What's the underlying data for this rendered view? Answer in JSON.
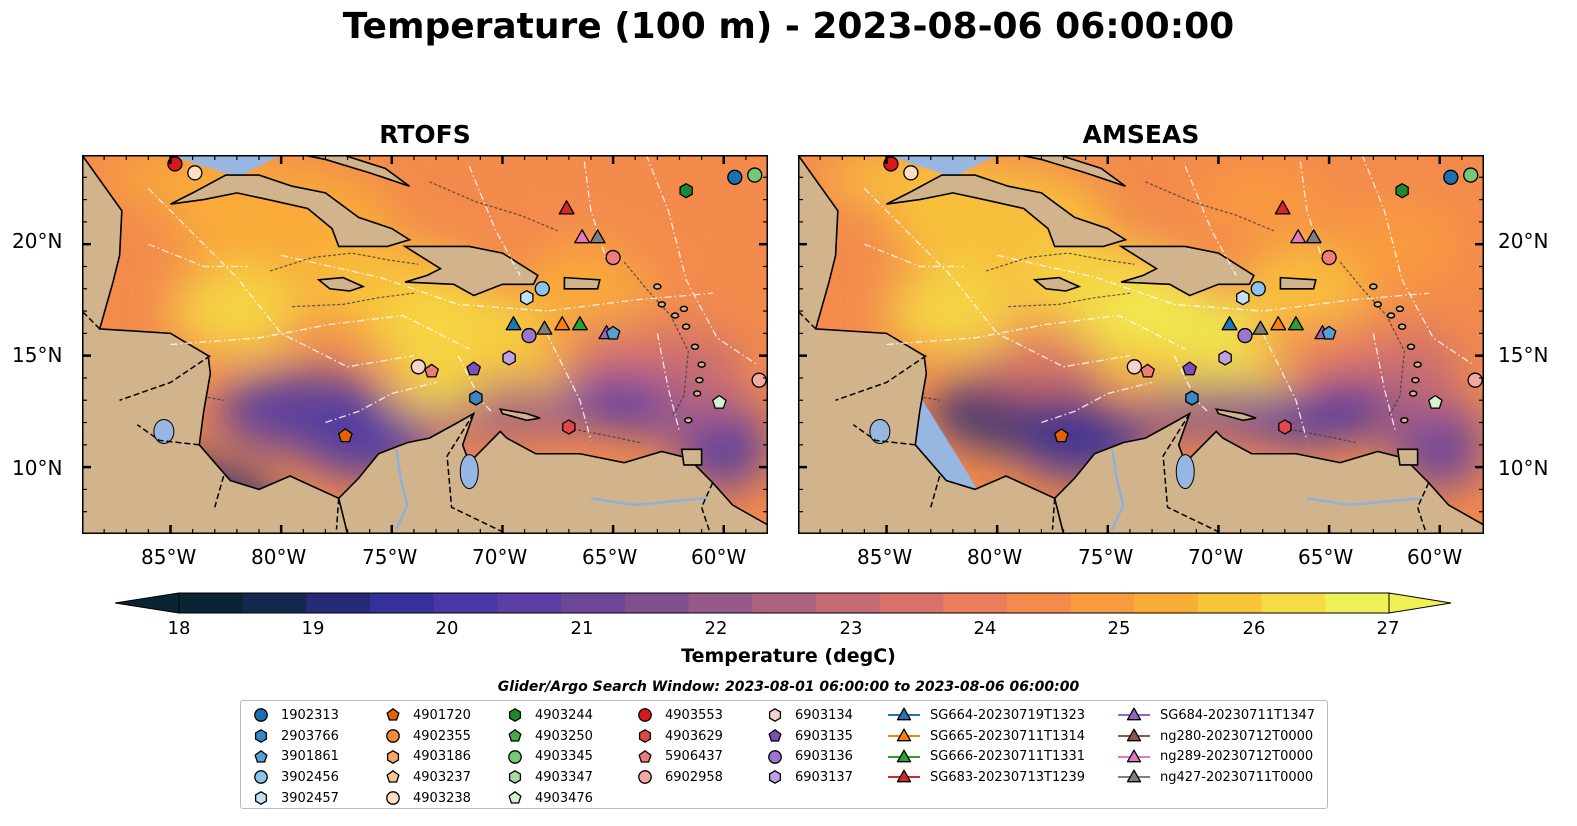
{
  "title": "Temperature (100 m) - 2023-08-06 06:00:00",
  "panels": [
    {
      "id": "rtofs",
      "title": "RTOFS"
    },
    {
      "id": "amseas",
      "title": "AMSEAS"
    }
  ],
  "lat_labels": [
    "20°N",
    "15°N",
    "10°N"
  ],
  "lon_labels": [
    "85°W",
    "80°W",
    "75°W",
    "70°W",
    "65°W",
    "60°W"
  ],
  "colorbar": {
    "label": "Temperature (degC)",
    "min": 18,
    "max": 27,
    "ticks": [
      "18",
      "19",
      "20",
      "21",
      "22",
      "23",
      "24",
      "25",
      "26",
      "27"
    ],
    "colors": [
      "#0b2433",
      "#16284d",
      "#262b78",
      "#36309a",
      "#4a37a6",
      "#5d3ea4",
      "#6d4797",
      "#7f4f8e",
      "#965a88",
      "#ad6280",
      "#c46b76",
      "#d9736a",
      "#e97d5c",
      "#f38b4d",
      "#f89b3f",
      "#f9ae37",
      "#f8c43a",
      "#f5dc44",
      "#eef155"
    ]
  },
  "map": {
    "extent": {
      "lon": [
        -89,
        -58
      ],
      "lat": [
        7,
        24
      ]
    },
    "land_color": "#d2b48c",
    "water_color": "#97b6e1"
  },
  "legend": {
    "title": "Glider/Argo Search Window: 2023-08-01 06:00:00 to 2023-08-06 06:00:00",
    "columns": [
      [
        {
          "label": "1902313",
          "marker": "circle",
          "color": "#1f6eb0"
        },
        {
          "label": "2903766",
          "marker": "hexagon",
          "color": "#3a86c0"
        },
        {
          "label": "3901861",
          "marker": "pentagon",
          "color": "#5a9fd2"
        },
        {
          "label": "3902456",
          "marker": "circle",
          "color": "#8cc3ea"
        },
        {
          "label": "3902457",
          "marker": "hexagon",
          "color": "#c4e0f6"
        }
      ],
      [
        {
          "label": "4901720",
          "marker": "pentagon",
          "color": "#e66100"
        },
        {
          "label": "4902355",
          "marker": "circle",
          "color": "#f58b3a"
        },
        {
          "label": "4903186",
          "marker": "hexagon",
          "color": "#fba765"
        },
        {
          "label": "4903237",
          "marker": "pentagon",
          "color": "#fdc591"
        },
        {
          "label": "4903238",
          "marker": "circle",
          "color": "#fde0c2"
        }
      ],
      [
        {
          "label": "4903244",
          "marker": "hexagon",
          "color": "#1b8a2f"
        },
        {
          "label": "4903250",
          "marker": "pentagon",
          "color": "#3fae4c"
        },
        {
          "label": "4903345",
          "marker": "circle",
          "color": "#74c977"
        },
        {
          "label": "4903347",
          "marker": "hexagon",
          "color": "#a5dda1"
        },
        {
          "label": "4903476",
          "marker": "pentagon",
          "color": "#d6f1d0"
        }
      ],
      [
        {
          "label": "4903553",
          "marker": "circle",
          "color": "#d7191c"
        },
        {
          "label": "4903629",
          "marker": "hexagon",
          "color": "#e0484a"
        },
        {
          "label": "5906437",
          "marker": "pentagon",
          "color": "#ef7b7b"
        },
        {
          "label": "6902958",
          "marker": "circle",
          "color": "#f6a9a3"
        }
      ],
      [
        {
          "label": "6903134",
          "marker": "hexagon",
          "color": "#f9d2cc"
        },
        {
          "label": "6903135",
          "marker": "pentagon",
          "color": "#7b4fb8"
        },
        {
          "label": "6903136",
          "marker": "circle",
          "color": "#9c75cf"
        },
        {
          "label": "6903137",
          "marker": "hexagon",
          "color": "#bfa0e0"
        }
      ],
      [
        {
          "label": "SG664-20230719T1323",
          "marker": "triangle",
          "color": "#1f77b4"
        },
        {
          "label": "SG665-20230711T1314",
          "marker": "triangle",
          "color": "#ff7f0e"
        },
        {
          "label": "SG666-20230711T1331",
          "marker": "triangle",
          "color": "#2ca02c"
        },
        {
          "label": "SG683-20230713T1239",
          "marker": "triangle",
          "color": "#d62728"
        }
      ],
      [
        {
          "label": "SG684-20230711T1347",
          "marker": "triangle",
          "color": "#9467bd"
        },
        {
          "label": "ng280-20230712T0000",
          "marker": "triangle",
          "color": "#8c564b"
        },
        {
          "label": "ng289-20230712T0000",
          "marker": "triangle",
          "color": "#e377c2"
        },
        {
          "label": "ng427-20230711T0000",
          "marker": "triangle",
          "color": "#7f7f7f"
        }
      ]
    ]
  },
  "platforms": [
    {
      "marker": "circle",
      "color": "#d7191c",
      "lon": -84.8,
      "lat": 23.6
    },
    {
      "marker": "circle",
      "color": "#fde0c2",
      "lon": -83.9,
      "lat": 23.2
    },
    {
      "marker": "circle",
      "color": "#1f6eb0",
      "lon": -59.5,
      "lat": 23.0
    },
    {
      "marker": "circle",
      "color": "#74c977",
      "lon": -58.6,
      "lat": 23.1
    },
    {
      "marker": "hexagon",
      "color": "#1b8a2f",
      "lon": -61.7,
      "lat": 22.4
    },
    {
      "marker": "triangle",
      "color": "#d62728",
      "lon": -67.1,
      "lat": 21.6
    },
    {
      "marker": "triangle",
      "color": "#e377c2",
      "lon": -66.4,
      "lat": 20.3
    },
    {
      "marker": "triangle",
      "color": "#7f7f7f",
      "lon": -65.7,
      "lat": 20.3
    },
    {
      "marker": "circle",
      "color": "#ef7b7b",
      "lon": -65.0,
      "lat": 19.4
    },
    {
      "marker": "circle",
      "color": "#8cc3ea",
      "lon": -68.2,
      "lat": 18.0
    },
    {
      "marker": "hexagon",
      "color": "#c4e0f6",
      "lon": -68.9,
      "lat": 17.6
    },
    {
      "marker": "triangle",
      "color": "#1f77b4",
      "lon": -69.5,
      "lat": 16.4
    },
    {
      "marker": "circle",
      "color": "#9c75cf",
      "lon": -68.8,
      "lat": 15.9
    },
    {
      "marker": "triangle",
      "color": "#7f7f7f",
      "lon": -68.1,
      "lat": 16.2
    },
    {
      "marker": "triangle",
      "color": "#ff7f0e",
      "lon": -67.3,
      "lat": 16.4
    },
    {
      "marker": "triangle",
      "color": "#2ca02c",
      "lon": -66.5,
      "lat": 16.4
    },
    {
      "marker": "triangle",
      "color": "#9467bd",
      "lon": -65.3,
      "lat": 16.0
    },
    {
      "marker": "pentagon",
      "color": "#5a9fd2",
      "lon": -65.0,
      "lat": 16.0
    },
    {
      "marker": "hexagon",
      "color": "#bfa0e0",
      "lon": -69.7,
      "lat": 14.9
    },
    {
      "marker": "circle",
      "color": "#f9d2cc",
      "lon": -73.8,
      "lat": 14.5
    },
    {
      "marker": "pentagon",
      "color": "#ef7b7b",
      "lon": -73.2,
      "lat": 14.3
    },
    {
      "marker": "pentagon",
      "color": "#7b4fb8",
      "lon": -71.3,
      "lat": 14.4
    },
    {
      "marker": "hexagon",
      "color": "#3a86c0",
      "lon": -71.2,
      "lat": 13.1
    },
    {
      "marker": "pentagon",
      "color": "#d6f1d0",
      "lon": -60.2,
      "lat": 12.9
    },
    {
      "marker": "circle",
      "color": "#f6a9a3",
      "lon": -58.4,
      "lat": 13.9
    },
    {
      "marker": "hexagon",
      "color": "#e0484a",
      "lon": -67.0,
      "lat": 11.8
    },
    {
      "marker": "pentagon",
      "color": "#e66100",
      "lon": -77.1,
      "lat": 11.4
    }
  ]
}
